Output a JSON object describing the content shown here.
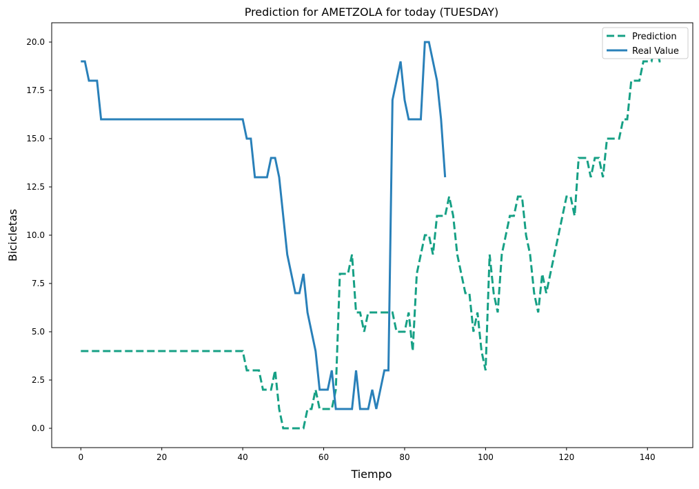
{
  "chart_data": {
    "type": "line",
    "title": "Prediction for AMETZOLA for today (TUESDAY)",
    "xlabel": "Tiempo",
    "ylabel": "Bicicletas",
    "xlim": [
      -7.2,
      151.2
    ],
    "ylim": [
      -1.0,
      21.0
    ],
    "xticks": [
      0,
      20,
      40,
      60,
      80,
      100,
      120,
      140
    ],
    "xtick_labels": [
      "0",
      "20",
      "40",
      "60",
      "80",
      "100",
      "120",
      "140"
    ],
    "yticks": [
      0.0,
      2.5,
      5.0,
      7.5,
      10.0,
      12.5,
      15.0,
      17.5,
      20.0
    ],
    "ytick_labels": [
      "0.0",
      "2.5",
      "5.0",
      "7.5",
      "10.0",
      "12.5",
      "15.0",
      "17.5",
      "20.0"
    ],
    "grid": false,
    "legend_position": "top-right",
    "series": [
      {
        "name": "Prediction",
        "color": "#16a085",
        "style": "dashed",
        "points": [
          [
            0,
            4
          ],
          [
            40,
            4
          ],
          [
            41,
            3
          ],
          [
            44,
            3
          ],
          [
            45,
            2
          ],
          [
            47,
            2
          ],
          [
            48,
            3
          ],
          [
            49,
            1
          ],
          [
            50,
            0
          ],
          [
            55,
            0
          ],
          [
            56,
            1
          ],
          [
            57,
            1
          ],
          [
            58,
            2
          ],
          [
            59,
            1
          ],
          [
            62,
            1
          ],
          [
            63,
            2
          ],
          [
            64,
            8
          ],
          [
            66,
            8
          ],
          [
            67,
            9
          ],
          [
            68,
            6
          ],
          [
            69,
            6
          ],
          [
            70,
            5
          ],
          [
            71,
            6
          ],
          [
            77,
            6
          ],
          [
            78,
            5
          ],
          [
            80,
            5
          ],
          [
            81,
            6
          ],
          [
            82,
            4
          ],
          [
            83,
            8
          ],
          [
            84,
            9
          ],
          [
            85,
            10
          ],
          [
            86,
            10
          ],
          [
            87,
            9
          ],
          [
            88,
            11
          ],
          [
            90,
            11
          ],
          [
            91,
            12
          ],
          [
            92,
            11
          ],
          [
            93,
            9
          ],
          [
            94,
            8
          ],
          [
            95,
            7
          ],
          [
            96,
            7
          ],
          [
            97,
            5
          ],
          [
            98,
            6
          ],
          [
            99,
            4
          ],
          [
            100,
            3
          ],
          [
            101,
            9
          ],
          [
            102,
            7
          ],
          [
            103,
            6
          ],
          [
            104,
            9
          ],
          [
            105,
            10
          ],
          [
            106,
            11
          ],
          [
            107,
            11
          ],
          [
            108,
            12
          ],
          [
            109,
            12
          ],
          [
            110,
            10
          ],
          [
            111,
            9
          ],
          [
            112,
            7
          ],
          [
            113,
            6
          ],
          [
            114,
            8
          ],
          [
            115,
            7
          ],
          [
            116,
            8
          ],
          [
            117,
            9
          ],
          [
            118,
            10
          ],
          [
            119,
            11
          ],
          [
            120,
            12
          ],
          [
            121,
            12
          ],
          [
            122,
            11
          ],
          [
            123,
            14
          ],
          [
            125,
            14
          ],
          [
            126,
            13
          ],
          [
            127,
            14
          ],
          [
            128,
            14
          ],
          [
            129,
            13
          ],
          [
            130,
            15
          ],
          [
            133,
            15
          ],
          [
            134,
            16
          ],
          [
            135,
            16
          ],
          [
            136,
            18
          ],
          [
            138,
            18
          ],
          [
            139,
            19
          ],
          [
            141,
            19
          ],
          [
            142,
            20
          ],
          [
            143,
            19
          ],
          [
            144,
            19
          ]
        ]
      },
      {
        "name": "Real Value",
        "color": "#2980b9",
        "style": "solid",
        "points": [
          [
            0,
            19
          ],
          [
            1,
            19
          ],
          [
            2,
            18
          ],
          [
            4,
            18
          ],
          [
            5,
            16
          ],
          [
            40,
            16
          ],
          [
            41,
            15
          ],
          [
            42,
            15
          ],
          [
            43,
            13
          ],
          [
            46,
            13
          ],
          [
            47,
            14
          ],
          [
            48,
            14
          ],
          [
            49,
            13
          ],
          [
            51,
            9
          ],
          [
            53,
            7
          ],
          [
            54,
            7
          ],
          [
            55,
            8
          ],
          [
            56,
            6
          ],
          [
            58,
            4
          ],
          [
            59,
            2
          ],
          [
            61,
            2
          ],
          [
            62,
            3
          ],
          [
            63,
            1
          ],
          [
            67,
            1
          ],
          [
            68,
            3
          ],
          [
            69,
            1
          ],
          [
            71,
            1
          ],
          [
            72,
            2
          ],
          [
            73,
            1
          ],
          [
            75,
            3
          ],
          [
            76,
            3
          ],
          [
            77,
            17
          ],
          [
            79,
            19
          ],
          [
            80,
            17
          ],
          [
            81,
            16
          ],
          [
            84,
            16
          ],
          [
            85,
            20
          ],
          [
            86,
            20
          ],
          [
            88,
            18
          ],
          [
            89,
            16
          ],
          [
            90,
            13
          ]
        ]
      }
    ]
  }
}
